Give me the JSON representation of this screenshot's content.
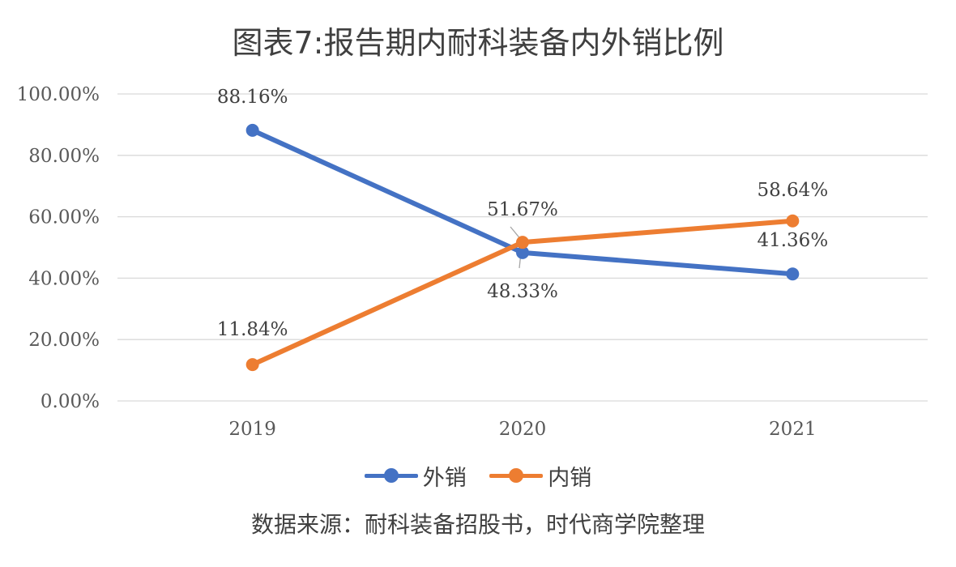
{
  "title": "图表7:报告期内耐科装备内外销比例",
  "source": "数据来源：耐科装备招股书，时代商学院整理",
  "colors": {
    "export": "#4472C4",
    "domestic": "#ED7D31",
    "grid": "#D9D9D9"
  },
  "chart_data": {
    "type": "line",
    "title": "图表7:报告期内耐科装备内外销比例",
    "categories": [
      "2019",
      "2020",
      "2021"
    ],
    "ylim": [
      0,
      100
    ],
    "yticks": [
      "0.00%",
      "20.00%",
      "40.00%",
      "60.00%",
      "80.00%",
      "100.00%"
    ],
    "grid": true,
    "legend_position": "bottom",
    "series": [
      {
        "name": "外销",
        "values": [
          88.16,
          48.33,
          41.36
        ],
        "labels": [
          "88.16%",
          "48.33%",
          "41.36%"
        ]
      },
      {
        "name": "内销",
        "values": [
          11.84,
          51.67,
          58.64
        ],
        "labels": [
          "11.84%",
          "51.67%",
          "58.64%"
        ]
      }
    ]
  }
}
